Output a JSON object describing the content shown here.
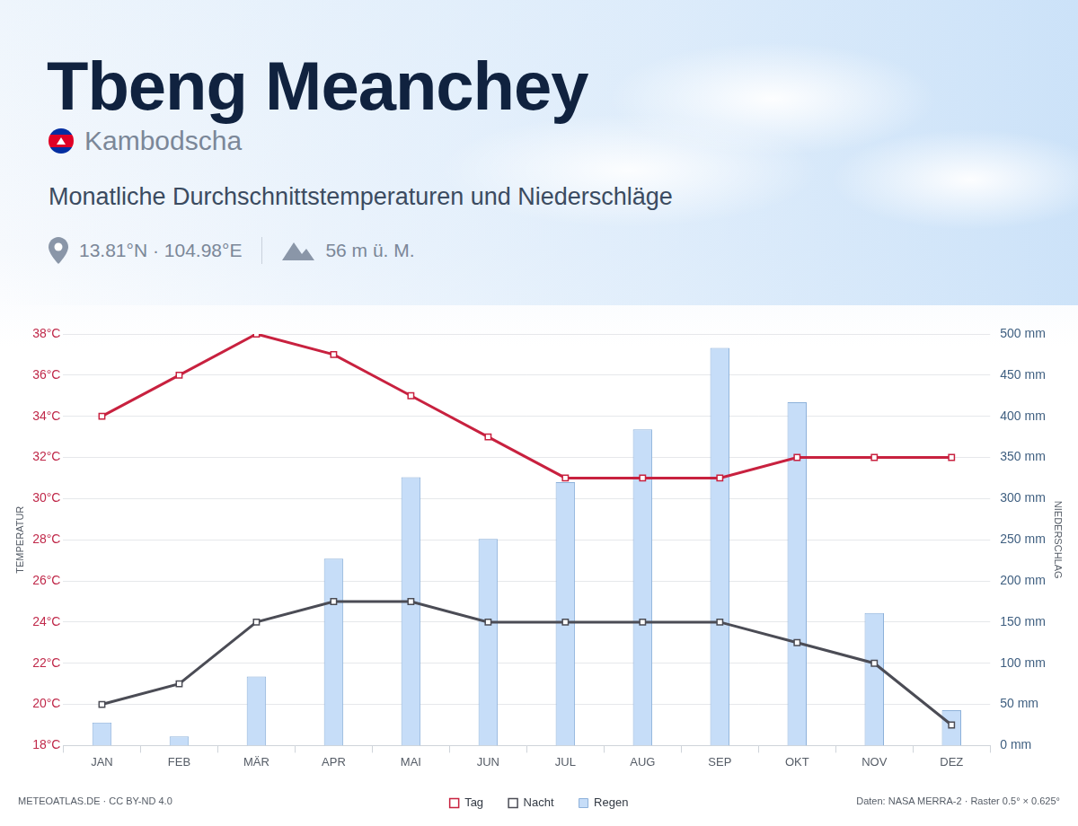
{
  "header": {
    "title": "Tbeng Meanchey",
    "country": "Kambodscha",
    "subtitle": "Monatliche Durchschnittstemperaturen und Niederschläge",
    "coordinates": "13.81°N · 104.98°E",
    "elevation": "56 m ü. M."
  },
  "chart_data": {
    "type": "bar",
    "y_label": "TEMPERATUR",
    "y2_label": "NIEDERSCHLAG",
    "categories": [
      "JAN",
      "FEB",
      "MÄR",
      "APR",
      "MAI",
      "JUN",
      "JUL",
      "AUG",
      "SEP",
      "OKT",
      "NOV",
      "DEZ"
    ],
    "series": [
      {
        "name": "Tag",
        "type": "line",
        "color": "#c8213f",
        "marker": "square",
        "line_style": "solid",
        "values": [
          34,
          36,
          38,
          37,
          35,
          33,
          31,
          31,
          31,
          32,
          32,
          32
        ]
      },
      {
        "name": "Nacht",
        "type": "line",
        "color": "#4b4c55",
        "marker": "square",
        "line_style": "solid",
        "values": [
          20,
          21,
          24,
          25,
          25,
          24,
          24,
          24,
          24,
          23,
          22,
          19
        ]
      },
      {
        "name": "Regen",
        "type": "bar",
        "color": "#c6ddf8",
        "axis": "y2",
        "values": [
          28,
          11,
          84,
          227,
          326,
          251,
          320,
          384,
          483,
          417,
          161,
          43
        ]
      }
    ],
    "ylim": [
      18,
      38
    ],
    "yticks": [
      {
        "value": 18,
        "label": "18°C"
      },
      {
        "value": 20,
        "label": "20°C"
      },
      {
        "value": 22,
        "label": "22°C"
      },
      {
        "value": 24,
        "label": "24°C"
      },
      {
        "value": 26,
        "label": "26°C"
      },
      {
        "value": 28,
        "label": "28°C"
      },
      {
        "value": 30,
        "label": "30°C"
      },
      {
        "value": 32,
        "label": "32°C"
      },
      {
        "value": 34,
        "label": "34°C"
      },
      {
        "value": 36,
        "label": "36°C"
      },
      {
        "value": 38,
        "label": "38°C"
      }
    ],
    "y2lim": [
      0,
      500
    ],
    "y2ticks": [
      {
        "value": 0,
        "label": "0 mm"
      },
      {
        "value": 50,
        "label": "50 mm"
      },
      {
        "value": 100,
        "label": "100 mm"
      },
      {
        "value": 150,
        "label": "150 mm"
      },
      {
        "value": 200,
        "label": "200 mm"
      },
      {
        "value": 250,
        "label": "250 mm"
      },
      {
        "value": 300,
        "label": "300 mm"
      },
      {
        "value": 350,
        "label": "350 mm"
      },
      {
        "value": 400,
        "label": "400 mm"
      },
      {
        "value": 450,
        "label": "450 mm"
      },
      {
        "value": 500,
        "label": "500 mm"
      }
    ],
    "grid": true,
    "legend": "bottom"
  },
  "footer": {
    "credit": "METEOATLAS.DE · CC BY-ND 4.0",
    "source": "Daten: NASA MERRA-2 · Raster 0.5° × 0.625°"
  }
}
